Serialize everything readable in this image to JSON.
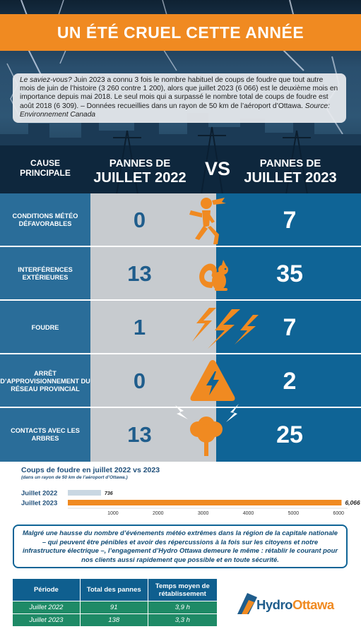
{
  "title": "UN ÉTÉ CRUEL CETTE ANNÉE",
  "info": {
    "lead": "Le saviez-vous?",
    "body": " Juin 2023 a connu 3 fois le nombre habituel de coups de foudre que tout autre mois de juin de l’histoire (3 260 contre 1 200), alors que juillet 2023 (6 066) est le deuxième mois en importance depuis mai 2018. Le seul mois qui a surpassé le nombre total de coups de foudre est août 2018 (6 309). – Données recueillies dans un rayon de 50 km de l’aéroport d’Ottawa. ",
    "source": "Source: Environnement Canada"
  },
  "header": {
    "cause": [
      "CAUSE",
      "PRINCIPALE"
    ],
    "col2022": [
      "PANNES DE",
      "JUILLET 2022"
    ],
    "vs": "VS",
    "col2023": [
      "PANNES DE",
      "JUILLET 2023"
    ]
  },
  "rows": [
    {
      "label": "CONDITIONS MÉTÉO DÉFAVORABLES",
      "v2022": "0",
      "v2023": "7",
      "icon": "wind-person-icon"
    },
    {
      "label": "INTERFÉRENCES EXTÉRIEURES",
      "v2022": "13",
      "v2023": "35",
      "icon": "squirrel-icon"
    },
    {
      "label": "FOUDRE",
      "v2022": "1",
      "v2023": "7",
      "icon": "lightning-icon"
    },
    {
      "label": "ARRÊT D’APPROVISIONNEMENT DU RÉSEAU PROVINCIAL",
      "v2022": "0",
      "v2023": "2",
      "icon": "high-voltage-icon"
    },
    {
      "label": "CONTACTS AVEC LES ARBRES",
      "v2022": "13",
      "v2023": "25",
      "icon": "tree-lightning-icon"
    }
  ],
  "chart_data": {
    "type": "bar",
    "title": "Coups de foudre en juillet 2022 vs 2023",
    "subtitle": "(dans un rayon de 50 km de l’aéroport d’Ottawa.)",
    "categories": [
      "Juillet 2022",
      "Juillet 2023"
    ],
    "values": [
      736,
      6066
    ],
    "value_labels": [
      "736",
      "6,066"
    ],
    "orientation": "horizontal",
    "xlim": [
      0,
      6200
    ],
    "xticks": [
      1000,
      2000,
      3000,
      4000,
      5000,
      6000
    ],
    "colors": [
      "#c9d7e2",
      "#f08a21"
    ]
  },
  "message": "Malgré une hausse du nombre d’événements météo extrêmes dans la région de la capitale nationale – qui peuvent être pénibles et avoir des répercussions à la fois sur les citoyens et notre infrastructure électrique –, l’engagement d’Hydro Ottawa demeure le même : rétablir le courant pour nos clients aussi rapidement que possible et en toute sécurité.",
  "table": {
    "headers": [
      "Période",
      "Total des pannes",
      "Temps moyen de rétablissement"
    ],
    "rows": [
      [
        "Juillet 2022",
        "91",
        "3,9 h"
      ],
      [
        "Juillet 2023",
        "138",
        "3,3 h"
      ]
    ]
  },
  "logo": {
    "part1": "Hydro",
    "part2": "Ottawa"
  },
  "colors": {
    "orange": "#f08a21",
    "blue": "#0f6496",
    "grey": "#c7cbcf",
    "green": "#1e8a66"
  }
}
